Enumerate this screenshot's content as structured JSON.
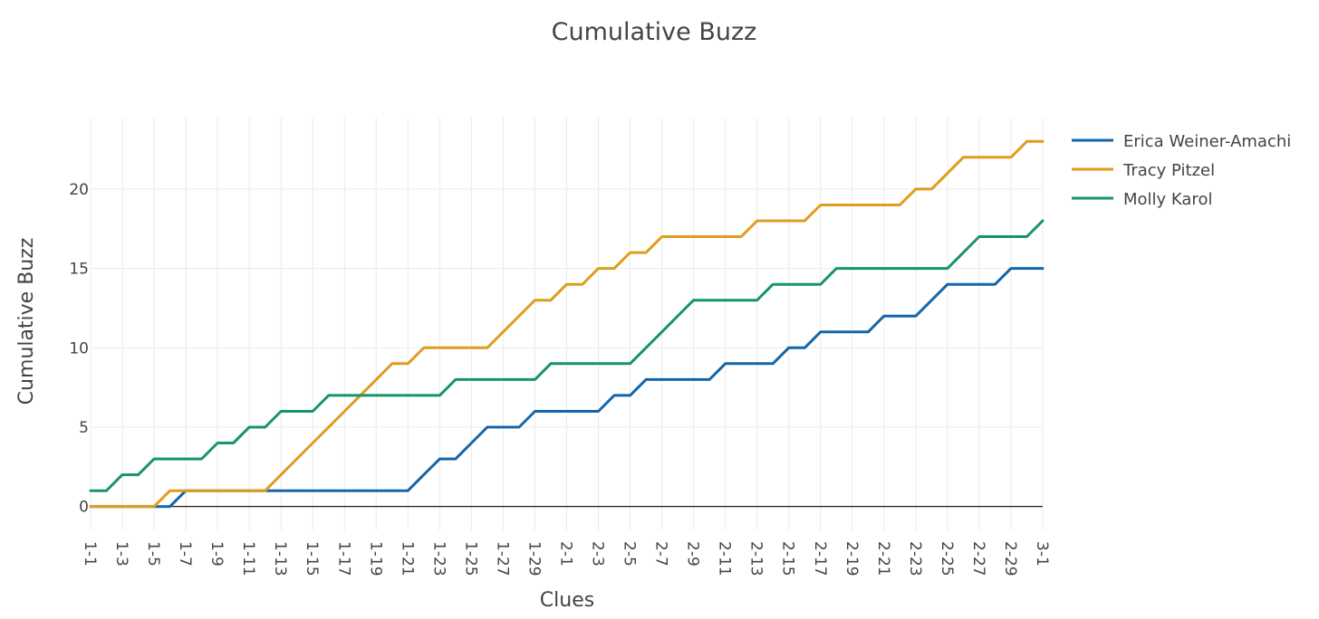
{
  "chart_data": {
    "type": "line",
    "title": "Cumulative Buzz",
    "xlabel": "Clues",
    "ylabel": "Cumulative Buzz",
    "ylim": [
      -1.5,
      24.5
    ],
    "yticks": [
      0,
      5,
      10,
      15,
      20
    ],
    "grid": true,
    "legend_position": "top-right",
    "x": [
      "1-1",
      "1-2",
      "1-3",
      "1-4",
      "1-5",
      "1-6",
      "1-7",
      "1-8",
      "1-9",
      "1-10",
      "1-11",
      "1-12",
      "1-13",
      "1-14",
      "1-15",
      "1-16",
      "1-17",
      "1-18",
      "1-19",
      "1-20",
      "1-21",
      "1-22",
      "1-23",
      "1-24",
      "1-25",
      "1-26",
      "1-27",
      "1-28",
      "1-29",
      "1-30",
      "2-1",
      "2-2",
      "2-3",
      "2-4",
      "2-5",
      "2-6",
      "2-7",
      "2-8",
      "2-9",
      "2-10",
      "2-11",
      "2-12",
      "2-13",
      "2-14",
      "2-15",
      "2-16",
      "2-17",
      "2-18",
      "2-19",
      "2-20",
      "2-21",
      "2-22",
      "2-23",
      "2-24",
      "2-25",
      "2-26",
      "2-27",
      "2-28",
      "2-29",
      "2-30",
      "3-1"
    ],
    "xticks": [
      "1-1",
      "1-3",
      "1-5",
      "1-7",
      "1-9",
      "1-11",
      "1-13",
      "1-15",
      "1-17",
      "1-19",
      "1-21",
      "1-23",
      "1-25",
      "1-27",
      "1-29",
      "2-1",
      "2-3",
      "2-5",
      "2-7",
      "2-9",
      "2-11",
      "2-13",
      "2-15",
      "2-17",
      "2-19",
      "2-21",
      "2-23",
      "2-25",
      "2-27",
      "2-29",
      "3-1"
    ],
    "series": [
      {
        "name": "Erica Weiner-Amachi",
        "color": "#1565a7",
        "values": [
          0,
          0,
          0,
          0,
          0,
          0,
          1,
          1,
          1,
          1,
          1,
          1,
          1,
          1,
          1,
          1,
          1,
          1,
          1,
          1,
          1,
          2,
          3,
          3,
          4,
          5,
          5,
          5,
          6,
          6,
          6,
          6,
          6,
          7,
          7,
          8,
          8,
          8,
          8,
          8,
          9,
          9,
          9,
          9,
          10,
          10,
          11,
          11,
          11,
          11,
          12,
          12,
          12,
          13,
          14,
          14,
          14,
          14,
          15,
          15,
          15
        ]
      },
      {
        "name": "Tracy Pitzel",
        "color": "#e09c1d",
        "values": [
          0,
          0,
          0,
          0,
          0,
          1,
          1,
          1,
          1,
          1,
          1,
          1,
          2,
          3,
          4,
          5,
          6,
          7,
          8,
          9,
          9,
          10,
          10,
          10,
          10,
          10,
          11,
          12,
          13,
          13,
          14,
          14,
          15,
          15,
          16,
          16,
          17,
          17,
          17,
          17,
          17,
          17,
          18,
          18,
          18,
          18,
          19,
          19,
          19,
          19,
          19,
          19,
          20,
          20,
          21,
          22,
          22,
          22,
          22,
          23,
          23
        ]
      },
      {
        "name": "Molly Karol",
        "color": "#17946b",
        "values": [
          1,
          1,
          2,
          2,
          3,
          3,
          3,
          3,
          4,
          4,
          5,
          5,
          6,
          6,
          6,
          7,
          7,
          7,
          7,
          7,
          7,
          7,
          7,
          8,
          8,
          8,
          8,
          8,
          8,
          9,
          9,
          9,
          9,
          9,
          9,
          10,
          11,
          12,
          13,
          13,
          13,
          13,
          13,
          14,
          14,
          14,
          14,
          15,
          15,
          15,
          15,
          15,
          15,
          15,
          15,
          16,
          17,
          17,
          17,
          17,
          18
        ]
      }
    ]
  }
}
